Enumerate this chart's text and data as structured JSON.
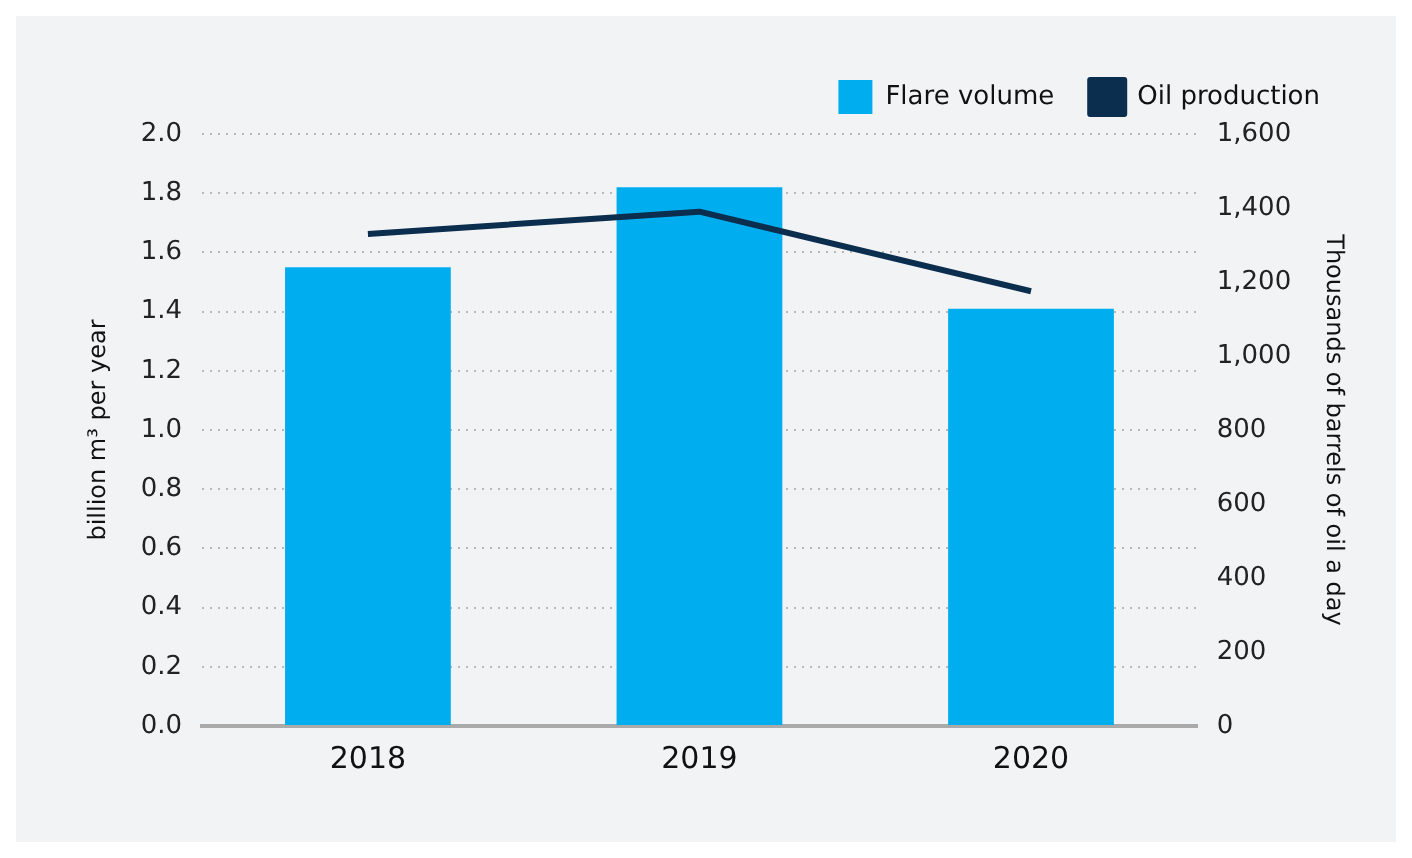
{
  "chart_data": {
    "type": "bar",
    "categories": [
      "2018",
      "2019",
      "2020"
    ],
    "series": [
      {
        "name": "Flare volume",
        "color": "#00aeef",
        "values": [
          1.55,
          1.82,
          1.41
        ]
      },
      {
        "name": "Oil production",
        "type": "line",
        "axis": "y2",
        "color": "#0b2d4e",
        "values": [
          1330,
          1390,
          1175
        ]
      }
    ],
    "ylabel": "billion m³ per year",
    "y2label": "Thousands of barrels of oil a day",
    "ylim": [
      0,
      2
    ],
    "yticks": [
      {
        "value": 0,
        "label": "0.0"
      },
      {
        "value": 0.2,
        "label": "0.2"
      },
      {
        "value": 0.4,
        "label": "0.4"
      },
      {
        "value": 0.6,
        "label": "0.6"
      },
      {
        "value": 0.8,
        "label": "0.8"
      },
      {
        "value": 1,
        "label": "1.0"
      },
      {
        "value": 1.2,
        "label": "1.2"
      },
      {
        "value": 1.4,
        "label": "1.4"
      },
      {
        "value": 1.6,
        "label": "1.6"
      },
      {
        "value": 1.8,
        "label": "1.8"
      },
      {
        "value": 2,
        "label": "2.0"
      }
    ],
    "y2lim": [
      0,
      1600
    ],
    "y2ticks": [
      0,
      200,
      400,
      600,
      800,
      {
        "value": 1000,
        "label": "1,000"
      },
      {
        "value": 1200,
        "label": "1,200"
      },
      {
        "value": 1400,
        "label": "1,400"
      },
      {
        "value": 1600,
        "label": "1,600"
      }
    ],
    "grid": "y",
    "legend": "top right",
    "marker": "none"
  }
}
